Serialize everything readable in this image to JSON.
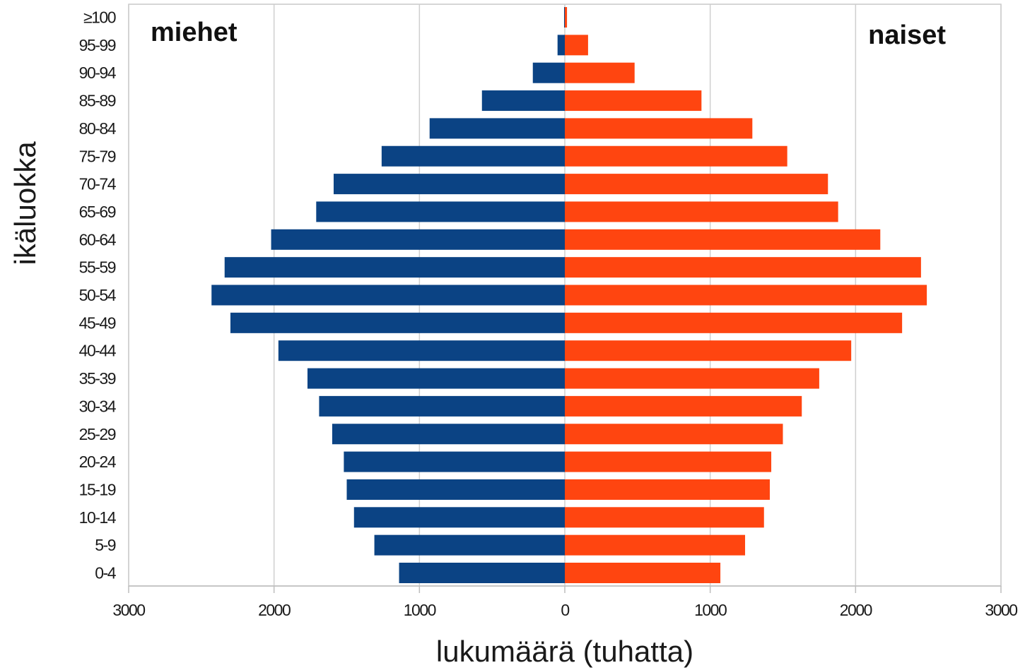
{
  "chart_data": {
    "type": "bar",
    "orientation": "horizontal",
    "subtype": "population-pyramid",
    "categories": [
      "0-4",
      "5-9",
      "10-14",
      "15-19",
      "20-24",
      "25-29",
      "30-34",
      "35-39",
      "40-44",
      "45-49",
      "50-54",
      "55-59",
      "60-64",
      "65-69",
      "70-74",
      "75-79",
      "80-84",
      "85-89",
      "90-94",
      "95-99",
      "≥100"
    ],
    "series": [
      {
        "name": "miehet",
        "color": "#0b4384",
        "side": "left",
        "values": [
          1140,
          1310,
          1450,
          1500,
          1520,
          1600,
          1690,
          1770,
          1970,
          2300,
          2430,
          2340,
          2020,
          1710,
          1590,
          1260,
          930,
          570,
          220,
          50,
          5
        ]
      },
      {
        "name": "naiset",
        "color": "#ff4510",
        "side": "right",
        "values": [
          1070,
          1240,
          1370,
          1410,
          1420,
          1500,
          1630,
          1750,
          1970,
          2320,
          2490,
          2450,
          2170,
          1880,
          1810,
          1530,
          1290,
          940,
          480,
          160,
          15
        ]
      }
    ],
    "xlabel": "lukumäärä (tuhatta)",
    "ylabel": "ikäluokka",
    "xlim": [
      -3000,
      3000
    ],
    "xticks": [
      -3000,
      -2000,
      -1000,
      0,
      1000,
      2000,
      3000
    ],
    "xtick_labels": [
      "3000",
      "2000",
      "1000",
      "0",
      "1000",
      "2000",
      "3000"
    ],
    "grid": "vertical",
    "legend": "none"
  }
}
